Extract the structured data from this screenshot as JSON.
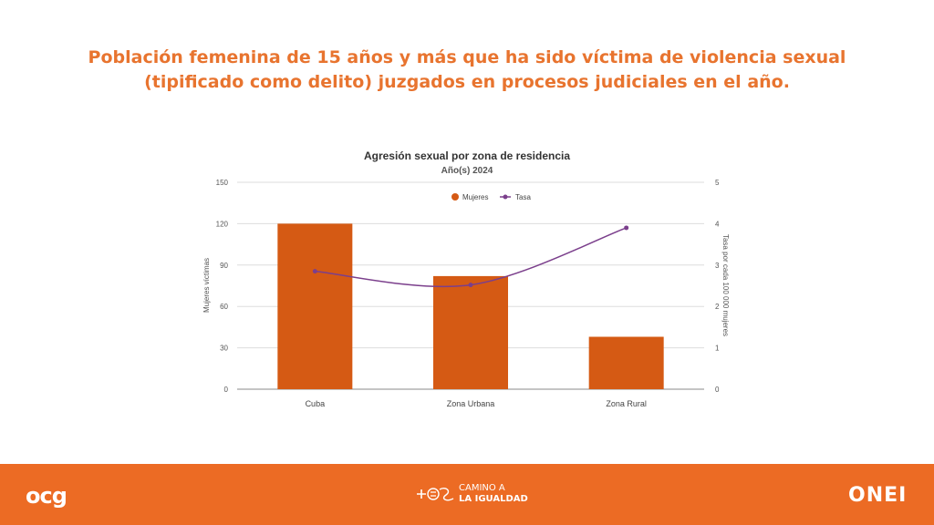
{
  "slide": {
    "title_line1": "Población femenina de 15 años y más que ha sido víctima de violencia sexual",
    "title_line2": "(tipificado como delito) juzgados en procesos judiciales en el año."
  },
  "chart_data": {
    "type": "bar",
    "title": "Agresión sexual por zona de residencia",
    "subtitle": "Año(s) 2024",
    "categories": [
      "Cuba",
      "Zona Urbana",
      "Zona Rural"
    ],
    "series": [
      {
        "name": "Mujeres",
        "kind": "bar",
        "axis": "left",
        "color": "#d55a14",
        "values": [
          120,
          82,
          38
        ]
      },
      {
        "name": "Tasa",
        "kind": "line",
        "axis": "right",
        "color": "#7b3f8c",
        "values": [
          2.85,
          2.52,
          3.9
        ]
      }
    ],
    "ylabel": "Mujeres víctimas",
    "y2label": "Tasa por cada 100 000 mujeres",
    "ylim": [
      0,
      150
    ],
    "y2lim": [
      0,
      5
    ],
    "yticks": [
      "0",
      "30",
      "60",
      "90",
      "120",
      "150"
    ],
    "y2ticks": [
      "0",
      "1",
      "2",
      "3",
      "4",
      "5"
    ],
    "legend_position": "top-center",
    "grid": true
  },
  "footer": {
    "color": "#ec6b24",
    "logo_left_text": "ocg",
    "logo_center_line1": "CAMINO A",
    "logo_center_line2": "LA IGUALDAD",
    "logo_right_text": "ONEI"
  }
}
